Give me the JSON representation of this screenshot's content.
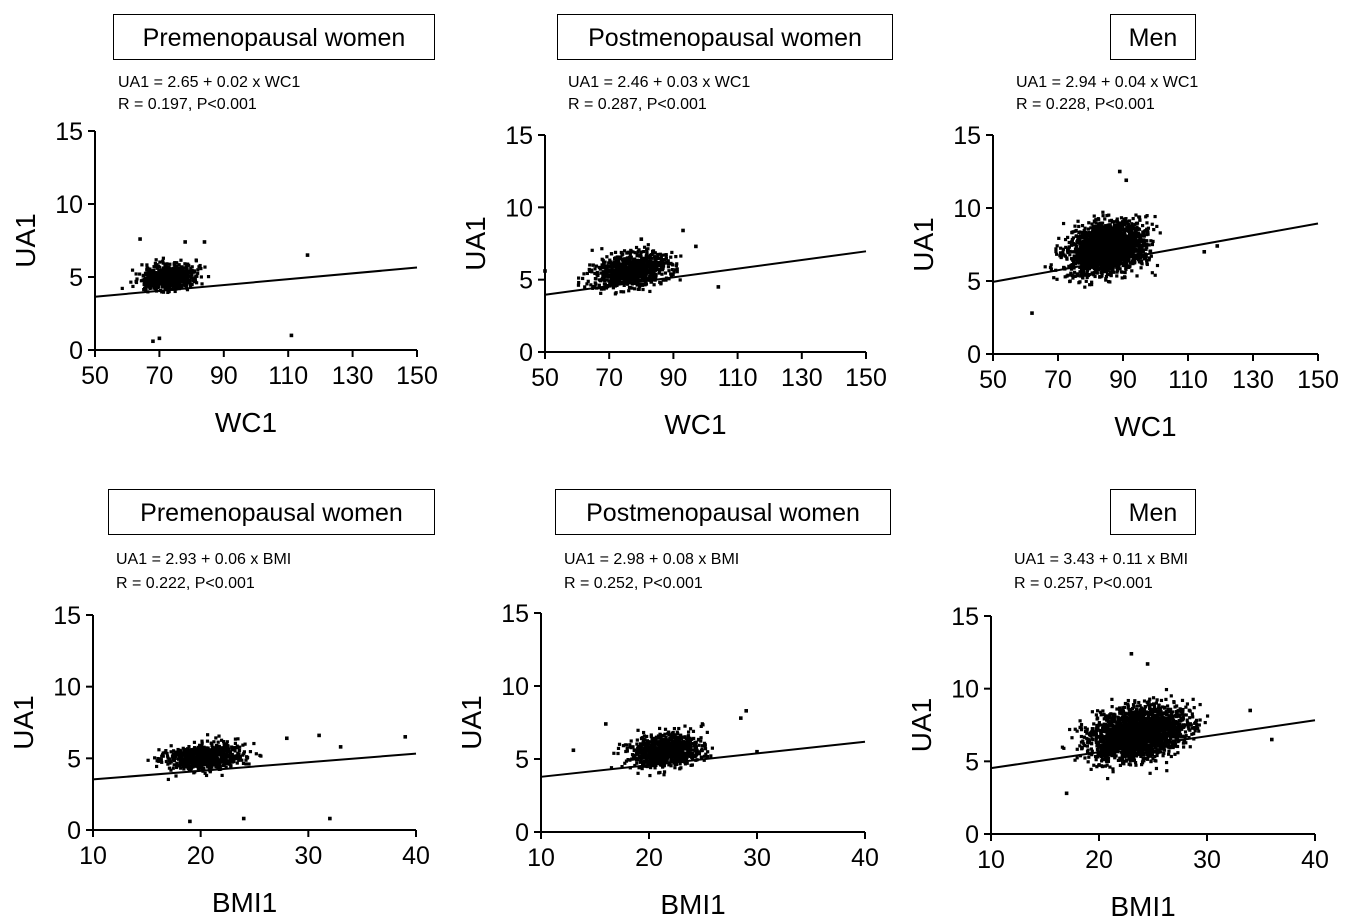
{
  "chart_data": [
    {
      "type": "scatter",
      "title": "Premenopausal women",
      "equation": "UA1 = 2.65 + 0.02  x  WC1",
      "stats": "R = 0.197, P<0.001",
      "xlabel": "WC1",
      "ylabel": "UA1",
      "xlim": [
        50,
        150
      ],
      "ylim": [
        0,
        15
      ],
      "xticks": [
        "50",
        "70",
        "90",
        "110",
        "130",
        "150"
      ],
      "yticks": [
        "0",
        "5",
        "10",
        "15"
      ],
      "regression": {
        "intercept": 2.65,
        "slope": 0.02
      },
      "cloud": {
        "x_mean": 73,
        "x_sd": 6,
        "y_sd": 0.6,
        "x_min": 55,
        "x_max": 97,
        "n": 700
      },
      "outliers": [
        [
          111,
          1.0
        ],
        [
          116,
          6.5
        ],
        [
          68,
          0.6
        ],
        [
          70,
          0.8
        ],
        [
          84,
          7.4
        ],
        [
          78,
          7.4
        ],
        [
          64,
          7.6
        ]
      ]
    },
    {
      "type": "scatter",
      "title": "Postmenopausal women",
      "equation": "UA1 = 2.46 + 0.03  x  WC1",
      "stats": "R = 0.287, P<0.001",
      "xlabel": "WC1",
      "ylabel": "UA1",
      "xlim": [
        50,
        150
      ],
      "ylim": [
        0,
        15
      ],
      "xticks": [
        "50",
        "70",
        "90",
        "110",
        "130",
        "150"
      ],
      "yticks": [
        "0",
        "5",
        "10",
        "15"
      ],
      "regression": {
        "intercept": 2.46,
        "slope": 0.03
      },
      "cloud": {
        "x_mean": 77,
        "x_sd": 8,
        "y_sd": 0.8,
        "x_min": 52,
        "x_max": 107,
        "n": 900
      },
      "outliers": [
        [
          93,
          8.4
        ],
        [
          50,
          5.6
        ],
        [
          104,
          4.5
        ],
        [
          80,
          7.8
        ],
        [
          97,
          7.3
        ]
      ]
    },
    {
      "type": "scatter",
      "title": "Men",
      "equation": "UA1 = 2.94 + 0.04  x  WC1",
      "stats": "R = 0.228, P<0.001",
      "xlabel": "WC1",
      "ylabel": "UA1",
      "xlim": [
        50,
        150
      ],
      "ylim": [
        0,
        15
      ],
      "xticks": [
        "50",
        "70",
        "90",
        "110",
        "130",
        "150"
      ],
      "yticks": [
        "0",
        "5",
        "10",
        "15"
      ],
      "regression": {
        "intercept": 2.94,
        "slope": 0.04
      },
      "cloud": {
        "x_mean": 85,
        "x_sd": 8,
        "y_sd": 1.2,
        "x_min": 62,
        "x_max": 112,
        "n": 2200
      },
      "outliers": [
        [
          89,
          12.5
        ],
        [
          91,
          11.9
        ],
        [
          119,
          7.4
        ],
        [
          62,
          2.8
        ],
        [
          115,
          7.0
        ]
      ]
    },
    {
      "type": "scatter",
      "title": "Premenopausal women",
      "equation": "UA1 = 2.93 + 0.06  x  BMI",
      "stats": "R = 0.222, P<0.001",
      "xlabel": "BMI1",
      "ylabel": "UA1",
      "xlim": [
        10,
        40
      ],
      "ylim": [
        0,
        15
      ],
      "xticks": [
        "10",
        "20",
        "30",
        "40"
      ],
      "yticks": [
        "0",
        "5",
        "10",
        "15"
      ],
      "regression": {
        "intercept": 2.93,
        "slope": 0.06
      },
      "cloud": {
        "x_mean": 20.5,
        "x_sd": 2.5,
        "y_sd": 0.65,
        "x_min": 15,
        "x_max": 33,
        "n": 700
      },
      "outliers": [
        [
          39,
          6.5
        ],
        [
          32,
          0.8
        ],
        [
          24,
          0.8
        ],
        [
          19,
          0.6
        ],
        [
          31,
          6.6
        ],
        [
          28,
          6.4
        ],
        [
          33,
          5.8
        ]
      ]
    },
    {
      "type": "scatter",
      "title": "Postmenopausal women",
      "equation": "UA1 = 2.98 + 0.08  x  BMI",
      "stats": "R = 0.252, P<0.001",
      "xlabel": "BMI1",
      "ylabel": "UA1",
      "xlim": [
        10,
        40
      ],
      "ylim": [
        0,
        15
      ],
      "xticks": [
        "10",
        "20",
        "30",
        "40"
      ],
      "yticks": [
        "0",
        "5",
        "10",
        "15"
      ],
      "regression": {
        "intercept": 2.98,
        "slope": 0.08
      },
      "cloud": {
        "x_mean": 21.5,
        "x_sd": 2.3,
        "y_sd": 0.8,
        "x_min": 15,
        "x_max": 30,
        "n": 900
      },
      "outliers": [
        [
          13,
          5.6
        ],
        [
          29,
          8.3
        ],
        [
          28.5,
          7.8
        ],
        [
          30,
          5.5
        ],
        [
          16,
          7.4
        ]
      ]
    },
    {
      "type": "scatter",
      "title": "Men",
      "equation": "UA1 = 3.43 + 0.11  x  BMI",
      "stats": "R = 0.257, P<0.001",
      "xlabel": "BMI1",
      "ylabel": "UA1",
      "xlim": [
        10,
        40
      ],
      "ylim": [
        0,
        15
      ],
      "xticks": [
        "10",
        "20",
        "30",
        "40"
      ],
      "yticks": [
        "0",
        "5",
        "10",
        "15"
      ],
      "regression": {
        "intercept": 3.43,
        "slope": 0.11
      },
      "cloud": {
        "x_mean": 23.5,
        "x_sd": 3.0,
        "y_sd": 1.2,
        "x_min": 15,
        "x_max": 36,
        "n": 2200
      },
      "outliers": [
        [
          23,
          12.4
        ],
        [
          24.5,
          11.7
        ],
        [
          36,
          6.5
        ],
        [
          17,
          2.8
        ],
        [
          34,
          8.5
        ]
      ]
    }
  ]
}
